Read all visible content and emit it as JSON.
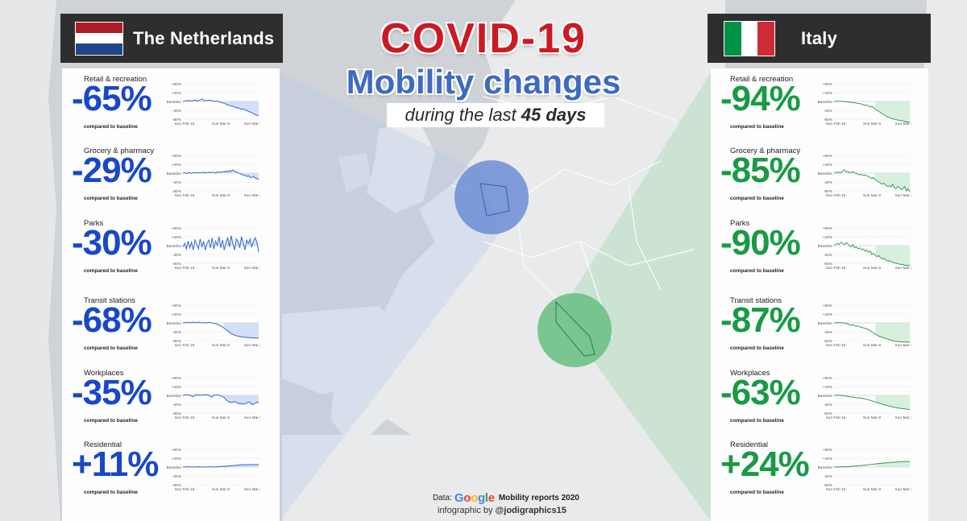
{
  "title": {
    "line1": "COVID-19",
    "line2": "Mobility changes",
    "line3_prefix": "during the last ",
    "line3_days": "45 days"
  },
  "footer": {
    "data_prefix": "Data:",
    "google_logo_letters": [
      "G",
      "o",
      "o",
      "g",
      "l",
      "e"
    ],
    "source": "Mobility reports 2020",
    "credit_prefix": "infographic by ",
    "credit_handle": "@jodigraphics15"
  },
  "axis": {
    "y_ticks": [
      "+80%",
      "+40%",
      "Baseline",
      "-40%",
      "-80%"
    ],
    "y_values": [
      80,
      40,
      0,
      -40,
      -80
    ],
    "x_ticks": [
      "Sun Feb 16",
      "Sun Mar 8",
      "Sun Mar 29"
    ]
  },
  "colors": {
    "nl_value": "#1848c8",
    "it_value": "#199a45",
    "nl_chart_line": "#3568c8",
    "nl_chart_fill": "#c9d9f7",
    "it_chart_line": "#2e9d52",
    "it_chart_fill": "#d0ecd7",
    "nl_circle": "#6f8fd6",
    "it_circle": "#6bbf84",
    "google": [
      "#4285F4",
      "#EA4335",
      "#FBBC05",
      "#4285F4",
      "#34A853",
      "#EA4335"
    ]
  },
  "compared_label": "compared to baseline",
  "chart_data": [
    {
      "type": "line",
      "country": "The Netherlands",
      "ylim": [
        -80,
        80
      ],
      "x_ticks": [
        "Sun Feb 16",
        "Sun Mar 8",
        "Sun Mar 29"
      ],
      "metrics": [
        {
          "label": "Retail & recreation",
          "value": "-65%",
          "series": [
            0,
            2,
            4,
            3,
            5,
            2,
            3,
            8,
            2,
            4,
            6,
            12,
            3,
            5,
            4,
            6,
            5,
            3,
            2,
            0,
            2,
            -2,
            -4,
            -6,
            -8,
            -12,
            -16,
            -18,
            -20,
            -22,
            -24,
            -30,
            -28,
            -32,
            -35,
            -34,
            -38,
            -40,
            -45,
            -48,
            -50,
            -55,
            -60,
            -62,
            -65
          ]
        },
        {
          "label": "Grocery & pharmacy",
          "value": "-29%",
          "series": [
            0,
            2,
            -2,
            3,
            1,
            -1,
            2,
            4,
            0,
            3,
            1,
            2,
            5,
            1,
            3,
            4,
            2,
            5,
            3,
            1,
            4,
            6,
            2,
            8,
            4,
            10,
            6,
            12,
            8,
            15,
            10,
            5,
            2,
            -2,
            -5,
            -8,
            -10,
            -15,
            -12,
            -18,
            -20,
            -15,
            -22,
            -25,
            -29
          ]
        },
        {
          "label": "Parks",
          "value": "-30%",
          "series": [
            -5,
            10,
            -15,
            20,
            -10,
            15,
            -20,
            25,
            5,
            -15,
            30,
            -5,
            20,
            -20,
            10,
            25,
            -10,
            35,
            -15,
            20,
            0,
            40,
            -10,
            25,
            -20,
            15,
            35,
            -5,
            45,
            10,
            -20,
            30,
            20,
            -10,
            40,
            15,
            -20,
            25,
            10,
            30,
            -5,
            20,
            35,
            15,
            -30
          ]
        },
        {
          "label": "Transit stations",
          "value": "-68%",
          "series": [
            0,
            2,
            1,
            3,
            2,
            0,
            4,
            1,
            2,
            3,
            2,
            0,
            1,
            2,
            -1,
            3,
            1,
            0,
            -2,
            -4,
            -6,
            -10,
            -14,
            -18,
            -24,
            -30,
            -36,
            -42,
            -48,
            -52,
            -55,
            -58,
            -60,
            -62,
            -63,
            -64,
            -65,
            -66,
            -66,
            -67,
            -68,
            -67,
            -68,
            -68,
            -68
          ]
        },
        {
          "label": "Workplaces",
          "value": "-35%",
          "series": [
            0,
            2,
            3,
            1,
            2,
            -4,
            -6,
            2,
            1,
            3,
            0,
            2,
            4,
            1,
            3,
            2,
            -5,
            -8,
            2,
            1,
            3,
            0,
            -2,
            -5,
            -10,
            -20,
            -25,
            -30,
            -32,
            -30,
            -28,
            -32,
            -35,
            -38,
            -36,
            -40,
            -38,
            -35,
            -30,
            -32,
            -42,
            -40,
            -35,
            -30,
            -35
          ]
        },
        {
          "label": "Residential",
          "value": "+11%",
          "series": [
            0,
            1,
            0,
            2,
            1,
            0,
            1,
            0,
            1,
            2,
            1,
            0,
            1,
            1,
            0,
            2,
            1,
            1,
            0,
            1,
            2,
            1,
            3,
            2,
            4,
            3,
            5,
            6,
            5,
            7,
            8,
            7,
            9,
            10,
            9,
            12,
            11,
            10,
            12,
            11,
            10,
            12,
            11,
            12,
            11
          ]
        }
      ]
    },
    {
      "type": "line",
      "country": "Italy",
      "ylim": [
        -80,
        80
      ],
      "x_ticks": [
        "Sun Feb 16",
        "Sun Mar 8",
        "Sun Mar 29"
      ],
      "metrics": [
        {
          "label": "Retail & recreation",
          "value": "-94%",
          "series": [
            0,
            1,
            0,
            2,
            1,
            0,
            -1,
            0,
            -2,
            -4,
            -3,
            -6,
            -5,
            -8,
            -10,
            -9,
            -12,
            -15,
            -18,
            -16,
            -20,
            -25,
            -22,
            -28,
            -35,
            -40,
            -45,
            -50,
            -55,
            -60,
            -65,
            -70,
            -72,
            -75,
            -78,
            -80,
            -82,
            -84,
            -85,
            -86,
            -88,
            -90,
            -92,
            -93,
            -94
          ]
        },
        {
          "label": "Grocery & pharmacy",
          "value": "-85%",
          "series": [
            0,
            2,
            5,
            3,
            1,
            10,
            15,
            5,
            8,
            2,
            4,
            6,
            1,
            -2,
            -5,
            -8,
            -6,
            -10,
            -8,
            -12,
            -15,
            -20,
            -25,
            -20,
            -30,
            -35,
            -40,
            -45,
            -50,
            -45,
            -55,
            -60,
            -58,
            -62,
            -50,
            -65,
            -70,
            -60,
            -65,
            -75,
            -70,
            -60,
            -80,
            -70,
            -85
          ]
        },
        {
          "label": "Parks",
          "value": "-90%",
          "series": [
            0,
            5,
            10,
            5,
            15,
            10,
            5,
            12,
            8,
            0,
            -5,
            5,
            -10,
            -5,
            -15,
            -10,
            -20,
            -15,
            -25,
            -20,
            -30,
            -25,
            -40,
            -35,
            -45,
            -50,
            -45,
            -55,
            -60,
            -58,
            -65,
            -70,
            -68,
            -72,
            -75,
            -78,
            -80,
            -82,
            -84,
            -85,
            -86,
            -88,
            -89,
            -90,
            -90
          ]
        },
        {
          "label": "Transit stations",
          "value": "-87%",
          "series": [
            0,
            1,
            0,
            2,
            1,
            0,
            -1,
            -2,
            -5,
            -8,
            -10,
            -8,
            -12,
            -15,
            -14,
            -18,
            -20,
            -22,
            -25,
            -28,
            -30,
            -35,
            -40,
            -45,
            -50,
            -55,
            -60,
            -62,
            -65,
            -68,
            -70,
            -72,
            -75,
            -78,
            -80,
            -82,
            -83,
            -84,
            -85,
            -85,
            -86,
            -86,
            -87,
            -87,
            -87
          ]
        },
        {
          "label": "Workplaces",
          "value": "-63%",
          "series": [
            0,
            1,
            0,
            1,
            0,
            -1,
            -2,
            -3,
            -5,
            -6,
            -8,
            -7,
            -10,
            -11,
            -12,
            -11,
            -13,
            -14,
            -16,
            -18,
            -20,
            -22,
            -25,
            -28,
            -30,
            -32,
            -35,
            -38,
            -40,
            -42,
            -44,
            -46,
            -48,
            -50,
            -52,
            -54,
            -55,
            -57,
            -58,
            -59,
            -60,
            -61,
            -62,
            -63,
            -63
          ]
        },
        {
          "label": "Residential",
          "value": "+24%",
          "series": [
            0,
            1,
            0,
            1,
            2,
            1,
            2,
            1,
            2,
            3,
            2,
            4,
            5,
            4,
            6,
            7,
            6,
            8,
            9,
            8,
            10,
            12,
            11,
            13,
            14,
            15,
            16,
            17,
            18,
            17,
            19,
            20,
            19,
            21,
            22,
            21,
            23,
            22,
            24,
            25,
            24,
            26,
            25,
            24,
            24
          ]
        }
      ]
    }
  ]
}
